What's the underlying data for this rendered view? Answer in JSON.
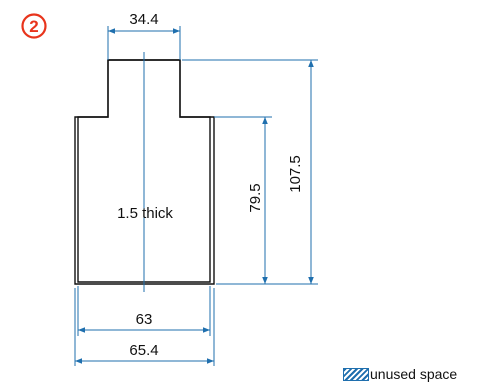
{
  "figure": {
    "number": "2",
    "top_width": "34.4",
    "inner_width": "63",
    "outer_width": "65.4",
    "lower_height": "79.5",
    "total_height": "107.5",
    "thickness_note": "1.5 thick"
  },
  "legend": {
    "label": "unused space"
  },
  "colors": {
    "dimension": "#1f6fae",
    "outline": "#111111",
    "badge": "#e8341c"
  }
}
